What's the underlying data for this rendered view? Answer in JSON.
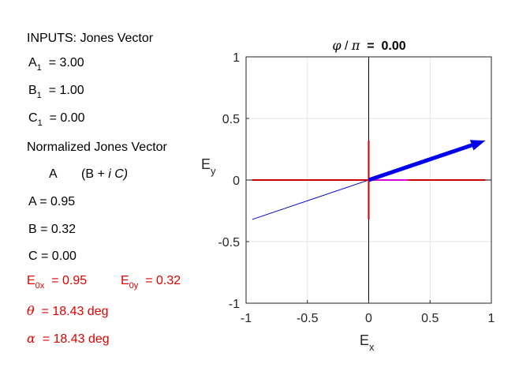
{
  "panel": {
    "inputs_heading": "INPUTS: Jones Vector",
    "a1_label": "A",
    "a1_sub": "1",
    "a1_value": "=  3.00",
    "b1_label": "B",
    "b1_sub": "1",
    "b1_value": "=  1.00",
    "c1_label": "C",
    "c1_sub": "1",
    "c1_value": "=  0.00",
    "normalized_heading": "Normalized Jones Vector",
    "vector_a": "A",
    "vector_b_open": "(B + ",
    "vector_i": "i",
    "vector_c_close": " C)",
    "a_line": "A  =  0.95",
    "b_line": "B  =  0.32",
    "c_line": "C  =  0.00",
    "e0x_label": "E",
    "e0x_sub": "0x",
    "e0x_value": "=  0.95",
    "e0y_label": "E",
    "e0y_sub": "0y",
    "e0y_value": "=  0.32",
    "theta_symbol": "θ",
    "theta_value": "=  18.43  deg",
    "alpha_symbol": "α",
    "alpha_value": "=  18.43  deg"
  },
  "colors": {
    "text_red": "#e00000",
    "axis_line_red": "#cc0000",
    "arrow_blue": "#0000ee",
    "ellipse_blue": "#0000cc",
    "magenta": "#dd00dd",
    "grid": "#e6e6e6",
    "frame": "#262626"
  },
  "chart_data": {
    "type": "line",
    "title_symbol": "φ",
    "title_mid": " / ",
    "title_pi": "π",
    "title_value": "  =  0.00",
    "xlabel": "E",
    "xlabel_sub": "x",
    "ylabel": "E",
    "ylabel_sub": "y",
    "xlim": [
      -1,
      1
    ],
    "ylim": [
      -1,
      1
    ],
    "xticks": [
      -1,
      -0.5,
      0,
      0.5,
      1
    ],
    "yticks": [
      -1,
      -0.5,
      0,
      0.5,
      1
    ],
    "xtick_labels": [
      "-1",
      "-0.5",
      "0",
      "0.5",
      "1"
    ],
    "ytick_labels": [
      "-1",
      "-0.5",
      "0",
      "0.5",
      "1"
    ],
    "grid": true,
    "polarization_line": {
      "x": [
        -0.95,
        0.95
      ],
      "y": [
        -0.32,
        0.32
      ]
    },
    "arrow": {
      "x": [
        0,
        0.95
      ],
      "y": [
        0,
        0.32
      ]
    },
    "red_horizontal": {
      "x": [
        -0.95,
        0.95
      ],
      "y": [
        0,
        0
      ]
    },
    "red_vertical": {
      "x": [
        0,
        0
      ],
      "y": [
        -0.32,
        0.32
      ]
    },
    "magenta_segment": {
      "x": [
        0,
        0.32
      ],
      "y": [
        0,
        0
      ]
    }
  }
}
